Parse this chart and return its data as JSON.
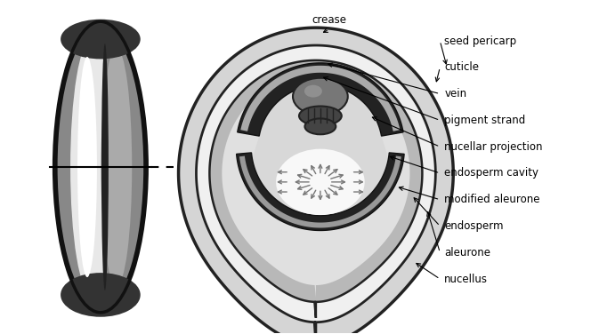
{
  "bg_color": "#ffffff",
  "labels": [
    "seed pericarp",
    "cuticle",
    "vein",
    "pigment strand",
    "nucellar projection",
    "endosperm cavity",
    "modified aleurone",
    "endosperm",
    "aleurone",
    "nucellus"
  ],
  "crease_label": "crease",
  "font_size": 8.5,
  "figsize": [
    6.64,
    3.76
  ],
  "dpi": 100
}
